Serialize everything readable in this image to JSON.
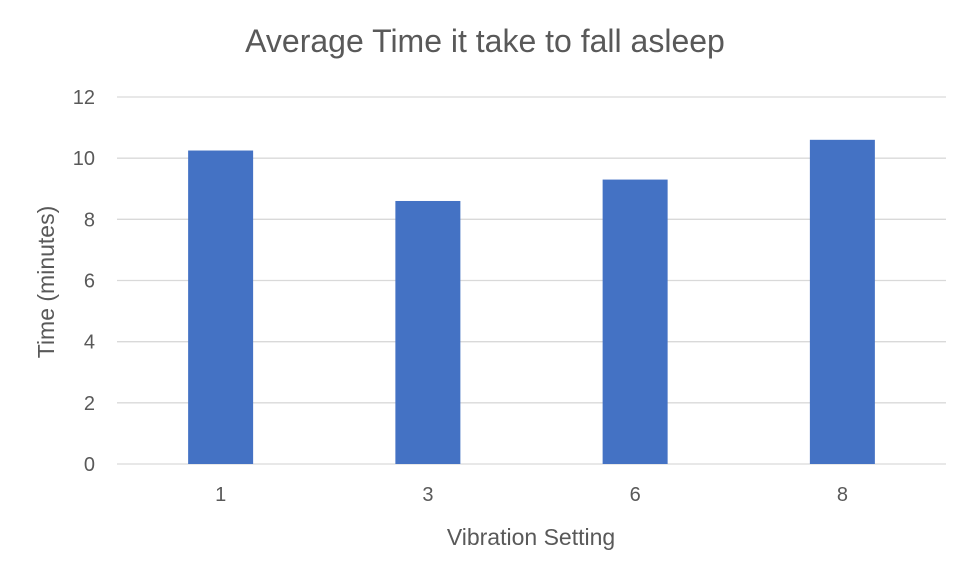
{
  "chart_data": {
    "type": "bar",
    "title": "Average Time it take to fall asleep",
    "xlabel": "Vibration Setting",
    "ylabel": "Time (minutes)",
    "categories": [
      "1",
      "3",
      "6",
      "8"
    ],
    "values": [
      10.25,
      8.6,
      9.3,
      10.6
    ],
    "ylim": [
      0,
      12
    ],
    "yticks": [
      "0",
      "2",
      "4",
      "6",
      "8",
      "10",
      "12"
    ],
    "grid": true,
    "colors": {
      "bar": "#4472c4",
      "text": "#595959",
      "grid": "#d9d9d9"
    }
  }
}
